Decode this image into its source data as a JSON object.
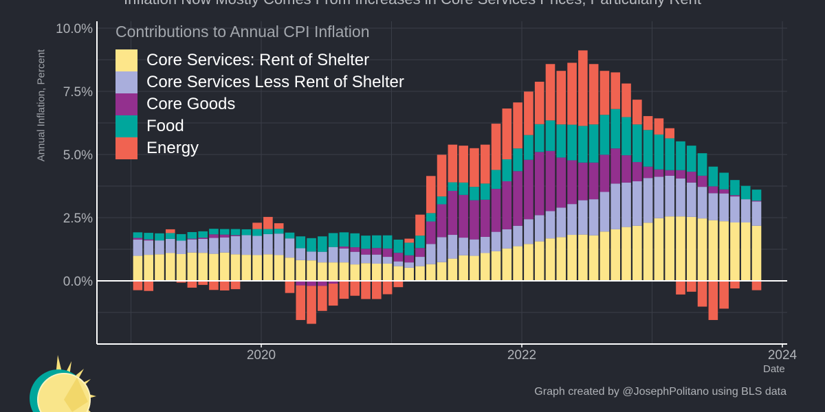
{
  "chart_data": {
    "type": "bar",
    "stacked": true,
    "title": "Inflation Now Mostly Comes From Increases in Core Services Prices, Particularly Rent",
    "subtitle": "Contributions to Annual CPI Inflation",
    "xlabel": "Date",
    "ylabel": "Annual Inflation, Percent",
    "caption": "Graph created by @JosephPolitano using BLS data",
    "ylim": [
      -2.5,
      10
    ],
    "xlim": [
      "2018-09",
      "2024-01"
    ],
    "yticks": [
      "0.0%",
      "2.5%",
      "5.0%",
      "7.5%",
      "10.0%"
    ],
    "ytick_values": [
      0,
      2.5,
      5,
      7.5,
      10
    ],
    "xticks": [
      "2020",
      "2022",
      "2024"
    ],
    "grid": true,
    "legend_position": "top-left",
    "start_month": "2019-01",
    "end_month": "2023-10",
    "series": [
      {
        "name": "Core Services: Rent of Shelter",
        "color": "#fde68a",
        "values": [
          0.99,
          1.03,
          1.05,
          1.1,
          1.06,
          1.12,
          1.11,
          1.07,
          1.12,
          1.05,
          1.03,
          1.02,
          1.05,
          1.02,
          0.92,
          0.82,
          0.81,
          0.73,
          0.73,
          0.73,
          0.65,
          0.7,
          0.68,
          0.68,
          0.58,
          0.52,
          0.58,
          0.66,
          0.74,
          0.88,
          1.01,
          0.99,
          1.1,
          1.17,
          1.28,
          1.37,
          1.46,
          1.56,
          1.68,
          1.73,
          1.82,
          1.83,
          1.8,
          1.95,
          2.04,
          2.13,
          2.18,
          2.3,
          2.48,
          2.55,
          2.55,
          2.53,
          2.47,
          2.4,
          2.36,
          2.31,
          2.31,
          2.18
        ]
      },
      {
        "name": "Core Services Less Rent of Shelter",
        "color": "#a9aedc",
        "values": [
          0.64,
          0.57,
          0.55,
          0.56,
          0.53,
          0.52,
          0.55,
          0.63,
          0.6,
          0.72,
          0.78,
          0.76,
          0.8,
          0.85,
          0.76,
          0.47,
          0.35,
          0.42,
          0.61,
          0.55,
          0.5,
          0.34,
          0.36,
          0.27,
          0.19,
          0.21,
          0.37,
          0.8,
          0.99,
          0.94,
          0.7,
          0.65,
          0.64,
          0.77,
          0.76,
          0.81,
          0.98,
          1.04,
          1.08,
          1.17,
          1.22,
          1.36,
          1.43,
          1.57,
          1.81,
          1.76,
          1.76,
          1.77,
          1.64,
          1.61,
          1.5,
          1.36,
          1.25,
          1.07,
          1.1,
          1.03,
          0.92,
          0.96
        ]
      },
      {
        "name": "Core Goods",
        "color": "#93308e",
        "values": [
          0.07,
          0.04,
          0,
          0,
          0,
          0.03,
          0.05,
          0.14,
          0.11,
          0.04,
          0,
          0,
          -0.02,
          0,
          0,
          -0.18,
          -0.2,
          -0.2,
          -0.11,
          0.08,
          0.18,
          0.23,
          0.26,
          0.33,
          0.34,
          0.28,
          0.35,
          0.89,
          1.3,
          1.74,
          1.69,
          1.55,
          1.47,
          1.7,
          1.9,
          2.16,
          2.35,
          2.5,
          2.38,
          1.98,
          1.73,
          1.49,
          1.45,
          1.47,
          1.39,
          1.08,
          0.76,
          0.45,
          0.29,
          0.22,
          0.33,
          0.43,
          0.44,
          0.27,
          0.16,
          0.05,
          0,
          0.03
        ]
      },
      {
        "name": "Food",
        "color": "#00a69c",
        "values": [
          0.22,
          0.26,
          0.28,
          0.23,
          0.26,
          0.26,
          0.25,
          0.22,
          0.22,
          0.24,
          0.23,
          0.27,
          0.2,
          0.19,
          0.23,
          0.47,
          0.53,
          0.61,
          0.55,
          0.56,
          0.55,
          0.52,
          0.5,
          0.52,
          0.52,
          0.5,
          0.49,
          0.33,
          0.31,
          0.34,
          0.49,
          0.53,
          0.64,
          0.75,
          0.87,
          0.9,
          0.98,
          1.1,
          1.21,
          1.31,
          1.41,
          1.45,
          1.51,
          1.58,
          1.56,
          1.51,
          1.49,
          1.45,
          1.38,
          1.26,
          1.14,
          1.03,
          0.89,
          0.78,
          0.66,
          0.6,
          0.53,
          0.44
        ]
      },
      {
        "name": "Energy",
        "color": "#f06351",
        "values": [
          -0.37,
          -0.4,
          -0.02,
          0.15,
          -0.07,
          -0.27,
          -0.16,
          -0.36,
          -0.38,
          -0.33,
          -0.02,
          0.25,
          0.48,
          0.22,
          -0.48,
          -1.37,
          -1.5,
          -0.99,
          -0.87,
          -0.71,
          -0.59,
          -0.72,
          -0.72,
          -0.53,
          -0.25,
          0.16,
          0.83,
          1.47,
          1.65,
          1.49,
          1.46,
          1.53,
          1.54,
          1.83,
          2.01,
          1.82,
          1.72,
          1.68,
          2.23,
          2.12,
          2.45,
          2.99,
          2.39,
          1.74,
          1.45,
          1.33,
          0.98,
          0.55,
          0.64,
          0.4,
          -0.54,
          -0.43,
          -1.02,
          -1.55,
          -1.1,
          -0.3,
          0,
          -0.37
        ]
      }
    ]
  },
  "logo": {
    "name": "sun-logo",
    "colors": [
      "#f7df7a",
      "#00a69c"
    ]
  }
}
